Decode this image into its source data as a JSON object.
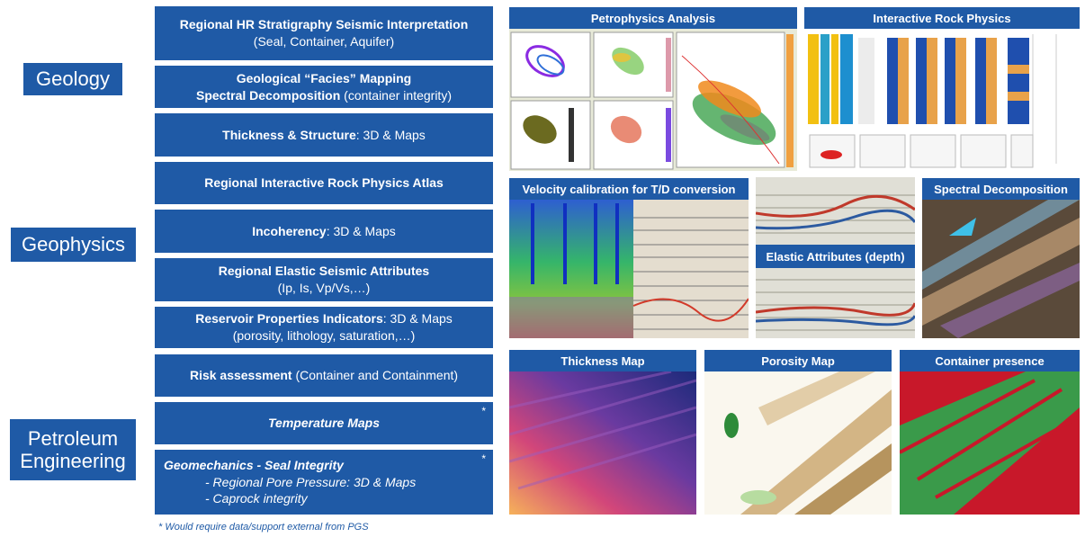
{
  "categories": {
    "geology": "Geology",
    "geophysics": "Geophysics",
    "petroleum": "Petroleum Engineering"
  },
  "boxes": {
    "b1": {
      "title": "Regional HR Stratigraphy Seismic Interpretation",
      "sub": "(Seal, Container, Aquifer)"
    },
    "b2": {
      "title": "Geological “Facies” Mapping",
      "title2": "Spectral Decomposition",
      "sub": "(container integrity)"
    },
    "b3": {
      "title": "Thickness & Structure",
      "sub": ": 3D & Maps"
    },
    "b4": {
      "title": "Regional Interactive Rock Physics Atlas"
    },
    "b5": {
      "title": "Incoherency",
      "sub": ": 3D & Maps"
    },
    "b6": {
      "title": "Regional Elastic Seismic Attributes",
      "sub": "(Ip, Is, Vp/Vs,…)"
    },
    "b7": {
      "title": "Reservoir Properties Indicators",
      "sub": ": 3D & Maps",
      "sub2": "(porosity, lithology, saturation,…)"
    },
    "b8": {
      "title": "Risk assessment",
      "sub": "(Container and Containment)"
    },
    "b9": {
      "title": "Temperature Maps",
      "star": "*"
    },
    "b10": {
      "title": "Geomechanics - Seal Integrity",
      "star": "*",
      "item1": "-    Regional Pore Pressure: 3D & Maps",
      "item2": "-    Caprock integrity"
    }
  },
  "footnote": "* Would require data/support external from PGS",
  "panels": {
    "petrophysics": "Petrophysics Analysis",
    "rockphysics": "Interactive Rock Physics",
    "velocity": "Velocity calibration for T/D conversion",
    "elastic": "Elastic Attributes (depth)",
    "spectral": "Spectral Decomposition",
    "thickness": "Thickness Map",
    "porosity": "Porosity Map",
    "container": "Container presence"
  }
}
